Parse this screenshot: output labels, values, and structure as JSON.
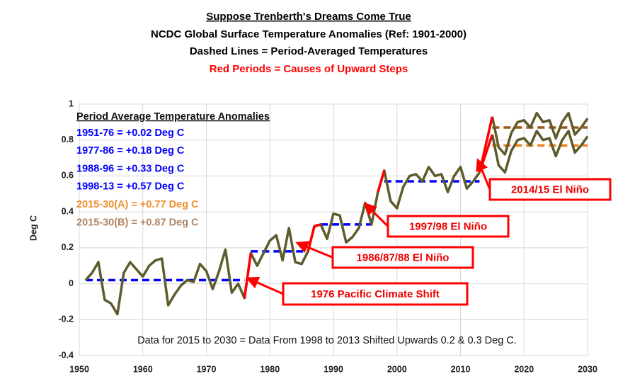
{
  "chart_data": {
    "type": "line",
    "title": "Suppose Trenberth's Dreams Come True",
    "subtitle": "NCDC Global Surface Temperature Anomalies (Ref: 1901-2000)",
    "subtitle2": "Dashed Lines = Period-Averaged Temperatures",
    "subtitle3": "Red Periods = Causes of Upward Steps",
    "y_label": "Deg C",
    "legend_title": "Period Average Temperature Anomalies",
    "footnote": "Data for 2015 to 2030 = Data From 1998 to 2013 Shifted Upwards 0.2 & 0.3 Deg C.",
    "xlim": [
      1950,
      2030
    ],
    "xticks": [
      1950,
      1960,
      1970,
      1980,
      1990,
      2000,
      2010,
      2020,
      2030
    ],
    "ylim": [
      -0.4,
      1
    ],
    "yticks": [
      -0.4,
      -0.2,
      0,
      0.2,
      0.4,
      0.6,
      0.8,
      1
    ],
    "grid": true,
    "x": [
      1951,
      1952,
      1953,
      1954,
      1955,
      1956,
      1957,
      1958,
      1959,
      1960,
      1961,
      1962,
      1963,
      1964,
      1965,
      1966,
      1967,
      1968,
      1969,
      1970,
      1971,
      1972,
      1973,
      1974,
      1975,
      1976,
      1977,
      1978,
      1979,
      1980,
      1981,
      1982,
      1983,
      1984,
      1985,
      1986,
      1987,
      1988,
      1989,
      1990,
      1991,
      1992,
      1993,
      1994,
      1995,
      1996,
      1997,
      1998,
      1999,
      2000,
      2001,
      2002,
      2003,
      2004,
      2005,
      2006,
      2007,
      2008,
      2009,
      2010,
      2011,
      2012,
      2013,
      2014,
      2015,
      2016,
      2017,
      2018,
      2019,
      2020,
      2021,
      2022,
      2023,
      2024,
      2025,
      2026,
      2027,
      2028,
      2029,
      2030
    ],
    "series": [
      {
        "color": "#5e5b2b",
        "values": [
          0.02,
          0.06,
          0.12,
          -0.09,
          -0.11,
          -0.17,
          0.06,
          0.12,
          0.08,
          0.04,
          0.1,
          0.13,
          0.14,
          -0.12,
          -0.06,
          -0.01,
          0.02,
          0.01,
          0.11,
          0.07,
          -0.03,
          0.07,
          0.19,
          -0.05,
          0.0,
          -0.08,
          0.17,
          0.1,
          0.17,
          0.24,
          0.27,
          0.13,
          0.31,
          0.12,
          0.11,
          0.18,
          0.32,
          0.33,
          0.25,
          0.39,
          0.38,
          0.23,
          0.26,
          0.31,
          0.45,
          0.33,
          0.51,
          0.63,
          0.46,
          0.42,
          0.54,
          0.6,
          0.61,
          0.57,
          0.65,
          0.6,
          0.61,
          0.51,
          0.6,
          0.65,
          0.53,
          0.57,
          0.62,
          null,
          0.83,
          0.66,
          0.62,
          0.74,
          0.8,
          0.81,
          0.77,
          0.85,
          0.8,
          0.81,
          0.71,
          0.8,
          0.85,
          0.73,
          0.77,
          0.82
        ]
      },
      {
        "color": "#5e5b2b",
        "values": [
          null,
          null,
          null,
          null,
          null,
          null,
          null,
          null,
          null,
          null,
          null,
          null,
          null,
          null,
          null,
          null,
          null,
          null,
          null,
          null,
          null,
          null,
          null,
          null,
          null,
          null,
          null,
          null,
          null,
          null,
          null,
          null,
          null,
          null,
          null,
          null,
          null,
          null,
          null,
          null,
          null,
          null,
          null,
          null,
          null,
          null,
          null,
          null,
          null,
          null,
          null,
          null,
          null,
          null,
          null,
          null,
          null,
          null,
          null,
          null,
          null,
          null,
          null,
          null,
          0.93,
          0.76,
          0.72,
          0.84,
          0.9,
          0.91,
          0.87,
          0.95,
          0.9,
          0.91,
          0.81,
          0.9,
          0.95,
          0.83,
          0.87,
          0.92
        ]
      }
    ],
    "red_color": "#ff0000",
    "red_periods": [
      [
        1976,
        1977
      ],
      [
        1986,
        1988
      ],
      [
        1997,
        1998
      ],
      [
        2013,
        2015
      ]
    ],
    "periods": [
      {
        "label": "1951-76 = +0.02 Deg C",
        "start": 1951,
        "end": 1976,
        "value": 0.02,
        "color": "#0000ff",
        "text_color": "#0000ff"
      },
      {
        "label": "1977-86 = +0.18 Deg C",
        "start": 1977,
        "end": 1986,
        "value": 0.18,
        "color": "#0000ff",
        "text_color": "#0000ff"
      },
      {
        "label": "1988-96 = +0.33 Deg C",
        "start": 1988,
        "end": 1996,
        "value": 0.33,
        "color": "#0000ff",
        "text_color": "#0000ff"
      },
      {
        "label": "1998-13 = +0.57 Deg C",
        "start": 1998,
        "end": 2013,
        "value": 0.57,
        "color": "#0000ff",
        "text_color": "#0000ff"
      },
      {
        "label": "2015-30(A) = +0.77 Deg C",
        "start": 2015,
        "end": 2030,
        "value": 0.77,
        "color": "#f08020",
        "text_color": "#f0902c"
      },
      {
        "label": "2015-30(B) = +0.87 Deg C",
        "start": 2015,
        "end": 2030,
        "value": 0.87,
        "color": "#a0581c",
        "text_color": "#b08464"
      }
    ],
    "annotations": [
      "1976 Pacific Climate Shift",
      "1986/87/88 El Niño",
      "1997/98 El Niño",
      "2014/15 El Niño"
    ]
  }
}
